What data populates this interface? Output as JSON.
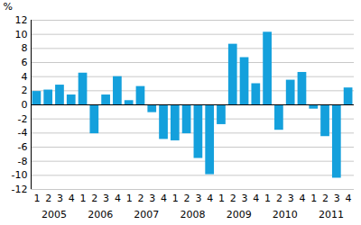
{
  "chart_data": {
    "type": "bar",
    "y_label": "%",
    "categories": [
      "1",
      "2",
      "3",
      "4",
      "1",
      "2",
      "3",
      "4",
      "1",
      "2",
      "3",
      "4",
      "1",
      "2",
      "3",
      "4",
      "1",
      "2",
      "3",
      "4",
      "1",
      "2",
      "3",
      "4",
      "1",
      "2",
      "3",
      "4"
    ],
    "years": [
      "2005",
      "2006",
      "2007",
      "2008",
      "2009",
      "2010",
      "2011"
    ],
    "values": [
      1.9,
      2.1,
      2.8,
      1.4,
      4.5,
      -4.1,
      1.4,
      4.0,
      0.6,
      2.6,
      -1.1,
      -4.9,
      -5.1,
      -4.1,
      -7.6,
      -9.9,
      -2.8,
      8.6,
      6.7,
      3.0,
      10.3,
      -3.6,
      3.5,
      4.6,
      -0.6,
      -4.5,
      -10.4,
      2.4
    ],
    "color": "#14a0dc",
    "ylim": [
      -12,
      12
    ],
    "yticks": [
      -12,
      -10,
      -8,
      -6,
      -4,
      -2,
      0,
      2,
      4,
      6,
      8,
      10,
      12
    ],
    "grid": true
  }
}
